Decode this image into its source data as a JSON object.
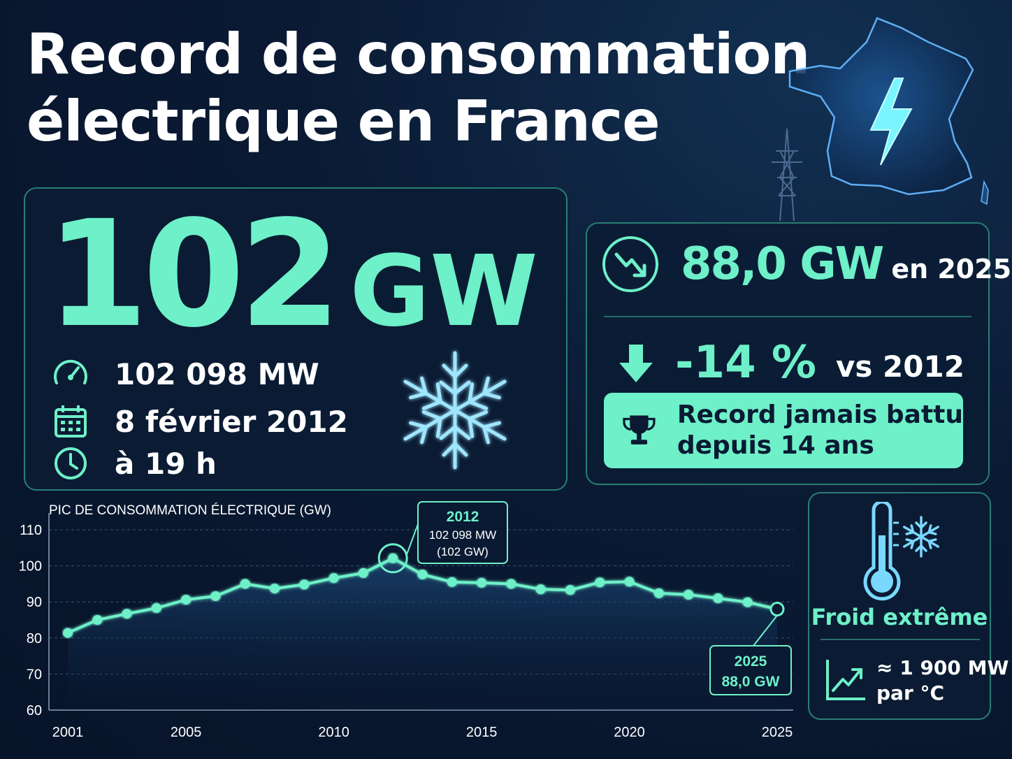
{
  "title": {
    "line1": "Record de consommation",
    "line2": "électrique en France"
  },
  "main_card": {
    "value": "102",
    "unit": "GW",
    "mw": "102 098 MW",
    "date": "8 février 2012",
    "time": "à 19 h"
  },
  "side_card": {
    "value": "88,0 GW",
    "year": "en 2025",
    "change": "-14 %",
    "vs": "vs 2012",
    "badge_line1": "Record jamais battu",
    "badge_line2": "depuis 14 ans"
  },
  "cold_card": {
    "label": "Froid extrême",
    "rate_line1": "≈ 1 900 MW",
    "rate_line2": "par °C"
  },
  "colors": {
    "accent": "#6ef0c8",
    "background": "#0a1a33",
    "border": "#2a7e74"
  },
  "icons": [
    "lightning-icon",
    "power-pylon-icon",
    "gauge-icon",
    "calendar-icon",
    "clock-icon",
    "snowflake-icon",
    "trend-down-icon",
    "arrow-down-icon",
    "trophy-icon",
    "thermometer-icon",
    "trend-up-icon"
  ],
  "chart_data": {
    "type": "line",
    "title": "PIC DE CONSOMMATION ÉLECTRIQUE (GW)",
    "x": [
      2001,
      2002,
      2003,
      2004,
      2005,
      2006,
      2007,
      2008,
      2009,
      2010,
      2011,
      2012,
      2013,
      2014,
      2015,
      2016,
      2017,
      2018,
      2019,
      2020,
      2021,
      2022,
      2023,
      2024,
      2025
    ],
    "x_ticks": [
      "2001",
      "2005",
      "2010",
      "2015",
      "2020",
      "2025"
    ],
    "y_ticks": [
      "60",
      "70",
      "80",
      "90",
      "100",
      "110"
    ],
    "ylim": [
      60,
      110
    ],
    "series": [
      {
        "values": [
          81.4,
          85.0,
          86.7,
          88.3,
          90.6,
          91.6,
          95.0,
          93.7,
          94.8,
          96.6,
          98.0,
          102.1,
          97.6,
          95.5,
          95.3,
          95.0,
          93.5,
          93.3,
          95.4,
          95.6,
          92.4,
          92.0,
          91.0,
          89.9,
          88.0
        ]
      }
    ],
    "annotations": [
      {
        "year": "2012",
        "line1": "102 098 MW",
        "line2": "(102 GW)"
      },
      {
        "year": "2025",
        "line1": "88,0 GW"
      }
    ],
    "grid": true
  }
}
